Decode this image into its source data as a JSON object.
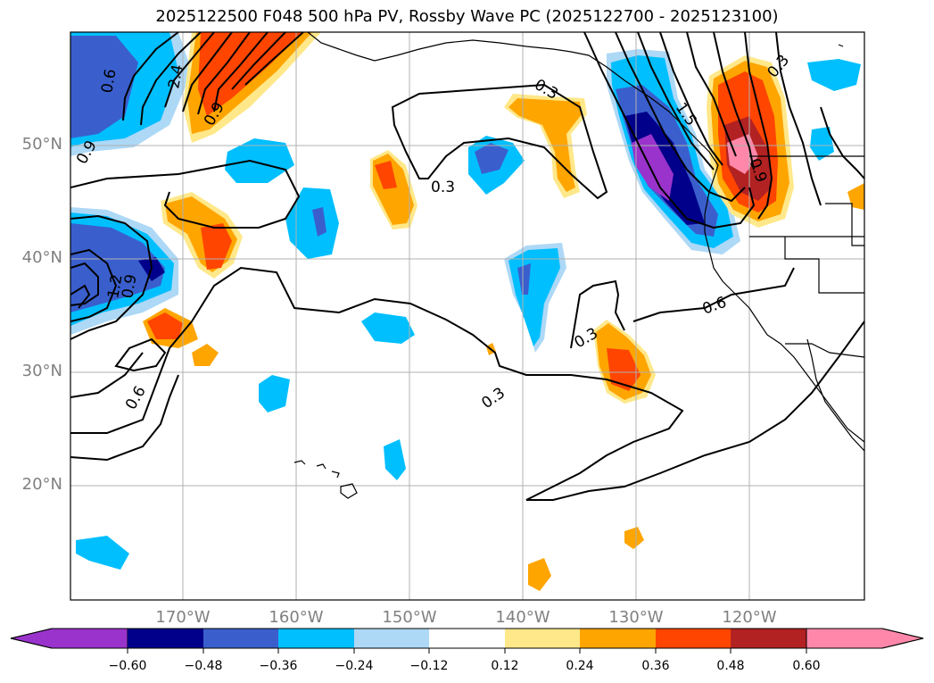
{
  "title": "2025122500 F048 500 hPa PV, Rossby Wave PC (2025122700 - 2025123100)",
  "latitude_labels": [
    "50°N",
    "40°N",
    "30°N",
    "20°N"
  ],
  "longitude_labels": [
    "170°W",
    "160°W",
    "150°W",
    "140°W",
    "130°W",
    "120°W"
  ],
  "contour_labels": [
    "0.3",
    "0.3",
    "0.3",
    "0.3",
    "0.3",
    "0.6",
    "0.6",
    "0.6",
    "0.9",
    "0.9",
    "0.9",
    "1.2",
    "1.5",
    "2.4",
    "0.9"
  ],
  "colorbar": {
    "tick_labels": [
      "−0.60",
      "−0.48",
      "−0.36",
      "−0.24",
      "−0.12",
      "0.12",
      "0.24",
      "0.36",
      "0.48",
      "0.60"
    ],
    "colors": [
      "#9933cc",
      "#00008b",
      "#3a5fcd",
      "#00bfff",
      "#add8f6",
      "#ffffff",
      "#ffe88a",
      "#ffa500",
      "#ff4500",
      "#b22222",
      "#ff88aa"
    ]
  },
  "map_colors": {
    "grid": "#b0b0b0",
    "coast": "#000000",
    "contour": "#000000"
  }
}
